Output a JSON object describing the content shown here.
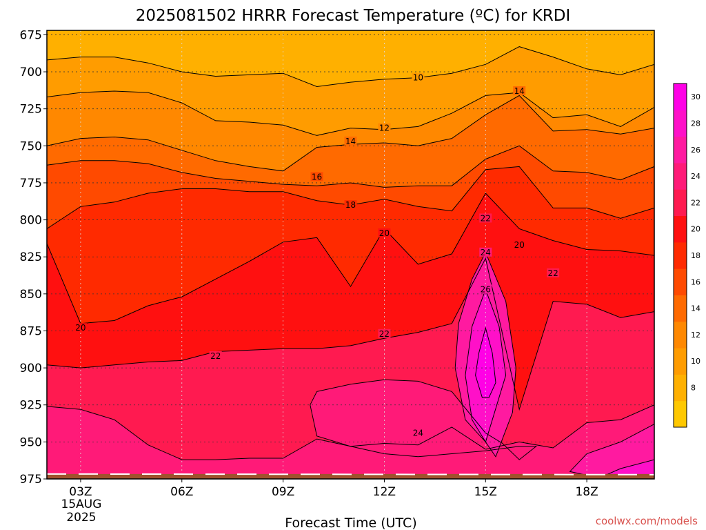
{
  "chart_data": {
    "type": "contour",
    "title": "2025081502 HRRR Forecast Temperature (ºC) for KRDI",
    "xlabel": "Forecast Time (UTC)",
    "ylabel": "",
    "x_ticks": [
      {
        "label": "03Z",
        "hour": 3
      },
      {
        "label": "06Z",
        "hour": 6
      },
      {
        "label": "09Z",
        "hour": 9
      },
      {
        "label": "12Z",
        "hour": 12
      },
      {
        "label": "15Z",
        "hour": 15
      },
      {
        "label": "18Z",
        "hour": 18
      }
    ],
    "x_date_labels": [
      "15AUG",
      "2025"
    ],
    "xlim": [
      2,
      20
    ],
    "y_ticks": [
      675,
      700,
      725,
      750,
      775,
      800,
      825,
      850,
      875,
      900,
      925,
      950,
      975
    ],
    "ylim": [
      975,
      672
    ],
    "y_unit": "hPa",
    "grid": true,
    "colorbar": {
      "placement": "right",
      "levels": [
        6,
        8,
        10,
        12,
        14,
        16,
        18,
        20,
        22,
        24,
        26,
        28,
        30,
        32
      ],
      "labels": [
        8,
        10,
        12,
        14,
        16,
        18,
        20,
        22,
        24,
        26,
        28,
        30
      ],
      "colors": [
        "#ffc800",
        "#ffb000",
        "#ff9c00",
        "#ff8800",
        "#ff6a00",
        "#ff4a00",
        "#ff2a00",
        "#ff1010",
        "#ff1a50",
        "#ff1a78",
        "#ff1aa0",
        "#ff10c8",
        "#ff00e6"
      ]
    },
    "contours": [
      {
        "level": 10,
        "hours": [
          2,
          3,
          4,
          5,
          6,
          7,
          8,
          9,
          10,
          11,
          12,
          13,
          14,
          15,
          16,
          17,
          18,
          19,
          20
        ],
        "pressure": [
          692,
          690,
          690,
          694,
          700,
          703,
          702,
          701,
          710,
          707,
          705,
          704,
          701,
          695,
          683,
          690,
          698,
          702,
          695
        ]
      },
      {
        "level": 12,
        "hours": [
          2,
          3,
          4,
          5,
          6,
          7,
          8,
          9,
          10,
          11,
          12,
          13,
          14,
          15,
          16,
          17,
          18,
          19,
          20
        ],
        "pressure": [
          717,
          714,
          713,
          714,
          721,
          733,
          734,
          736,
          743,
          738,
          739,
          737,
          728,
          716,
          714,
          731,
          729,
          737,
          724
        ]
      },
      {
        "level": 14,
        "hours": [
          2,
          3,
          4,
          5,
          6,
          7,
          8,
          9,
          10,
          11,
          12,
          13,
          14,
          15,
          16,
          17,
          18,
          19,
          20
        ],
        "pressure": [
          750,
          745,
          744,
          746,
          753,
          760,
          764,
          767,
          751,
          749,
          748,
          750,
          745,
          729,
          716,
          740,
          739,
          742,
          738
        ]
      },
      {
        "level": 16,
        "hours": [
          2,
          3,
          4,
          5,
          6,
          7,
          8,
          9,
          10,
          11,
          12,
          13,
          14,
          15,
          16,
          17,
          18,
          19,
          20
        ],
        "pressure": [
          763,
          760,
          760,
          762,
          768,
          772,
          774,
          776,
          777,
          775,
          778,
          777,
          777,
          759,
          750,
          767,
          768,
          773,
          764
        ]
      },
      {
        "level": 18,
        "hours": [
          2,
          3,
          4,
          5,
          6,
          7,
          8,
          9,
          10,
          11,
          12,
          13,
          14,
          15,
          16,
          17,
          18,
          19,
          20
        ],
        "pressure": [
          806,
          791,
          788,
          782,
          779,
          779,
          781,
          781,
          787,
          790,
          786,
          791,
          794,
          766,
          764,
          792,
          792,
          799,
          792
        ]
      },
      {
        "level": 20,
        "hours": [
          2,
          3,
          4,
          5,
          6,
          7,
          8,
          9,
          10,
          11,
          12,
          13,
          14,
          15,
          16,
          17,
          18,
          19,
          20
        ],
        "pressure": [
          816,
          870,
          868,
          858,
          852,
          840,
          828,
          815,
          812,
          845,
          806,
          830,
          823,
          782,
          806,
          814,
          820,
          821,
          824
        ]
      },
      {
        "level": 22,
        "hours": [
          2,
          3,
          4,
          5,
          6,
          7,
          8,
          9,
          10,
          11,
          12,
          13,
          14,
          15,
          16,
          17,
          18,
          19,
          20
        ],
        "pressure": [
          898,
          900,
          898,
          896,
          895,
          889,
          888,
          887,
          887,
          885,
          880,
          876,
          870,
          826,
          928,
          855,
          857,
          866,
          862
        ]
      },
      {
        "level": 24,
        "hours": [
          2,
          3,
          4,
          5,
          6,
          7,
          8,
          9,
          10,
          11,
          12,
          13,
          14,
          15,
          16,
          17,
          18,
          19,
          20
        ],
        "pressure": [
          926,
          928,
          935,
          952,
          962,
          962,
          961,
          961,
          948,
          953,
          951,
          952,
          940,
          955,
          950,
          954,
          937,
          935,
          925
        ]
      }
    ],
    "contour_labels": [
      {
        "text": "10",
        "hour": 13,
        "pressure": 704
      },
      {
        "text": "14",
        "hour": 16,
        "pressure": 713
      },
      {
        "text": "12",
        "hour": 12,
        "pressure": 738
      },
      {
        "text": "14",
        "hour": 11,
        "pressure": 747
      },
      {
        "text": "16",
        "hour": 10,
        "pressure": 771
      },
      {
        "text": "18",
        "hour": 11,
        "pressure": 790
      },
      {
        "text": "20",
        "hour": 12,
        "pressure": 809
      },
      {
        "text": "22",
        "hour": 15,
        "pressure": 799
      },
      {
        "text": "20",
        "hour": 16,
        "pressure": 817
      },
      {
        "text": "24",
        "hour": 15,
        "pressure": 822
      },
      {
        "text": "22",
        "hour": 17,
        "pressure": 836
      },
      {
        "text": "26",
        "hour": 15,
        "pressure": 847
      },
      {
        "text": "20",
        "hour": 3,
        "pressure": 873
      },
      {
        "text": "22",
        "hour": 12,
        "pressure": 877
      },
      {
        "text": "22",
        "hour": 7,
        "pressure": 892
      },
      {
        "text": "24",
        "hour": 13,
        "pressure": 944
      }
    ],
    "pockets": [
      {
        "level": 24,
        "hours": [
          10,
          11,
          12,
          13,
          14,
          14.5,
          15,
          15.5,
          16,
          16.5,
          16,
          15,
          14,
          13,
          12,
          11,
          10,
          9.8
        ],
        "pressure": [
          916,
          911,
          908,
          909,
          916,
          930,
          944,
          951,
          962,
          953,
          953,
          956,
          958,
          960,
          958,
          953,
          946,
          925
        ]
      },
      {
        "level": 26,
        "hours": [
          15,
          15.6,
          15.9,
          15.8,
          15.3,
          15,
          14.4,
          14.1,
          14.2,
          14.6
        ],
        "pressure": [
          822,
          855,
          900,
          930,
          960,
          950,
          935,
          900,
          870,
          840
        ]
      },
      {
        "level": 28,
        "hours": [
          15,
          15.4,
          15.6,
          15.2,
          15,
          14.6,
          14.4,
          14.6
        ],
        "pressure": [
          847,
          872,
          905,
          935,
          950,
          935,
          905,
          872
        ]
      },
      {
        "level": 30,
        "hours": [
          15,
          15.2,
          15.3,
          15.1,
          14.9,
          14.7,
          14.8
        ],
        "pressure": [
          873,
          890,
          910,
          920,
          920,
          905,
          890
        ]
      },
      {
        "level": 26,
        "hours": [
          17.5,
          18,
          19,
          20,
          20,
          19,
          18.5
        ],
        "pressure": [
          970,
          958,
          950,
          938,
          975,
          975,
          975
        ]
      },
      {
        "level": 28,
        "hours": [
          18.5,
          19,
          20,
          20,
          19
        ],
        "pressure": [
          973,
          968,
          962,
          975,
          975
        ]
      }
    ],
    "ground": {
      "pressure": 967
    }
  },
  "credit": "coolwx.com/models"
}
